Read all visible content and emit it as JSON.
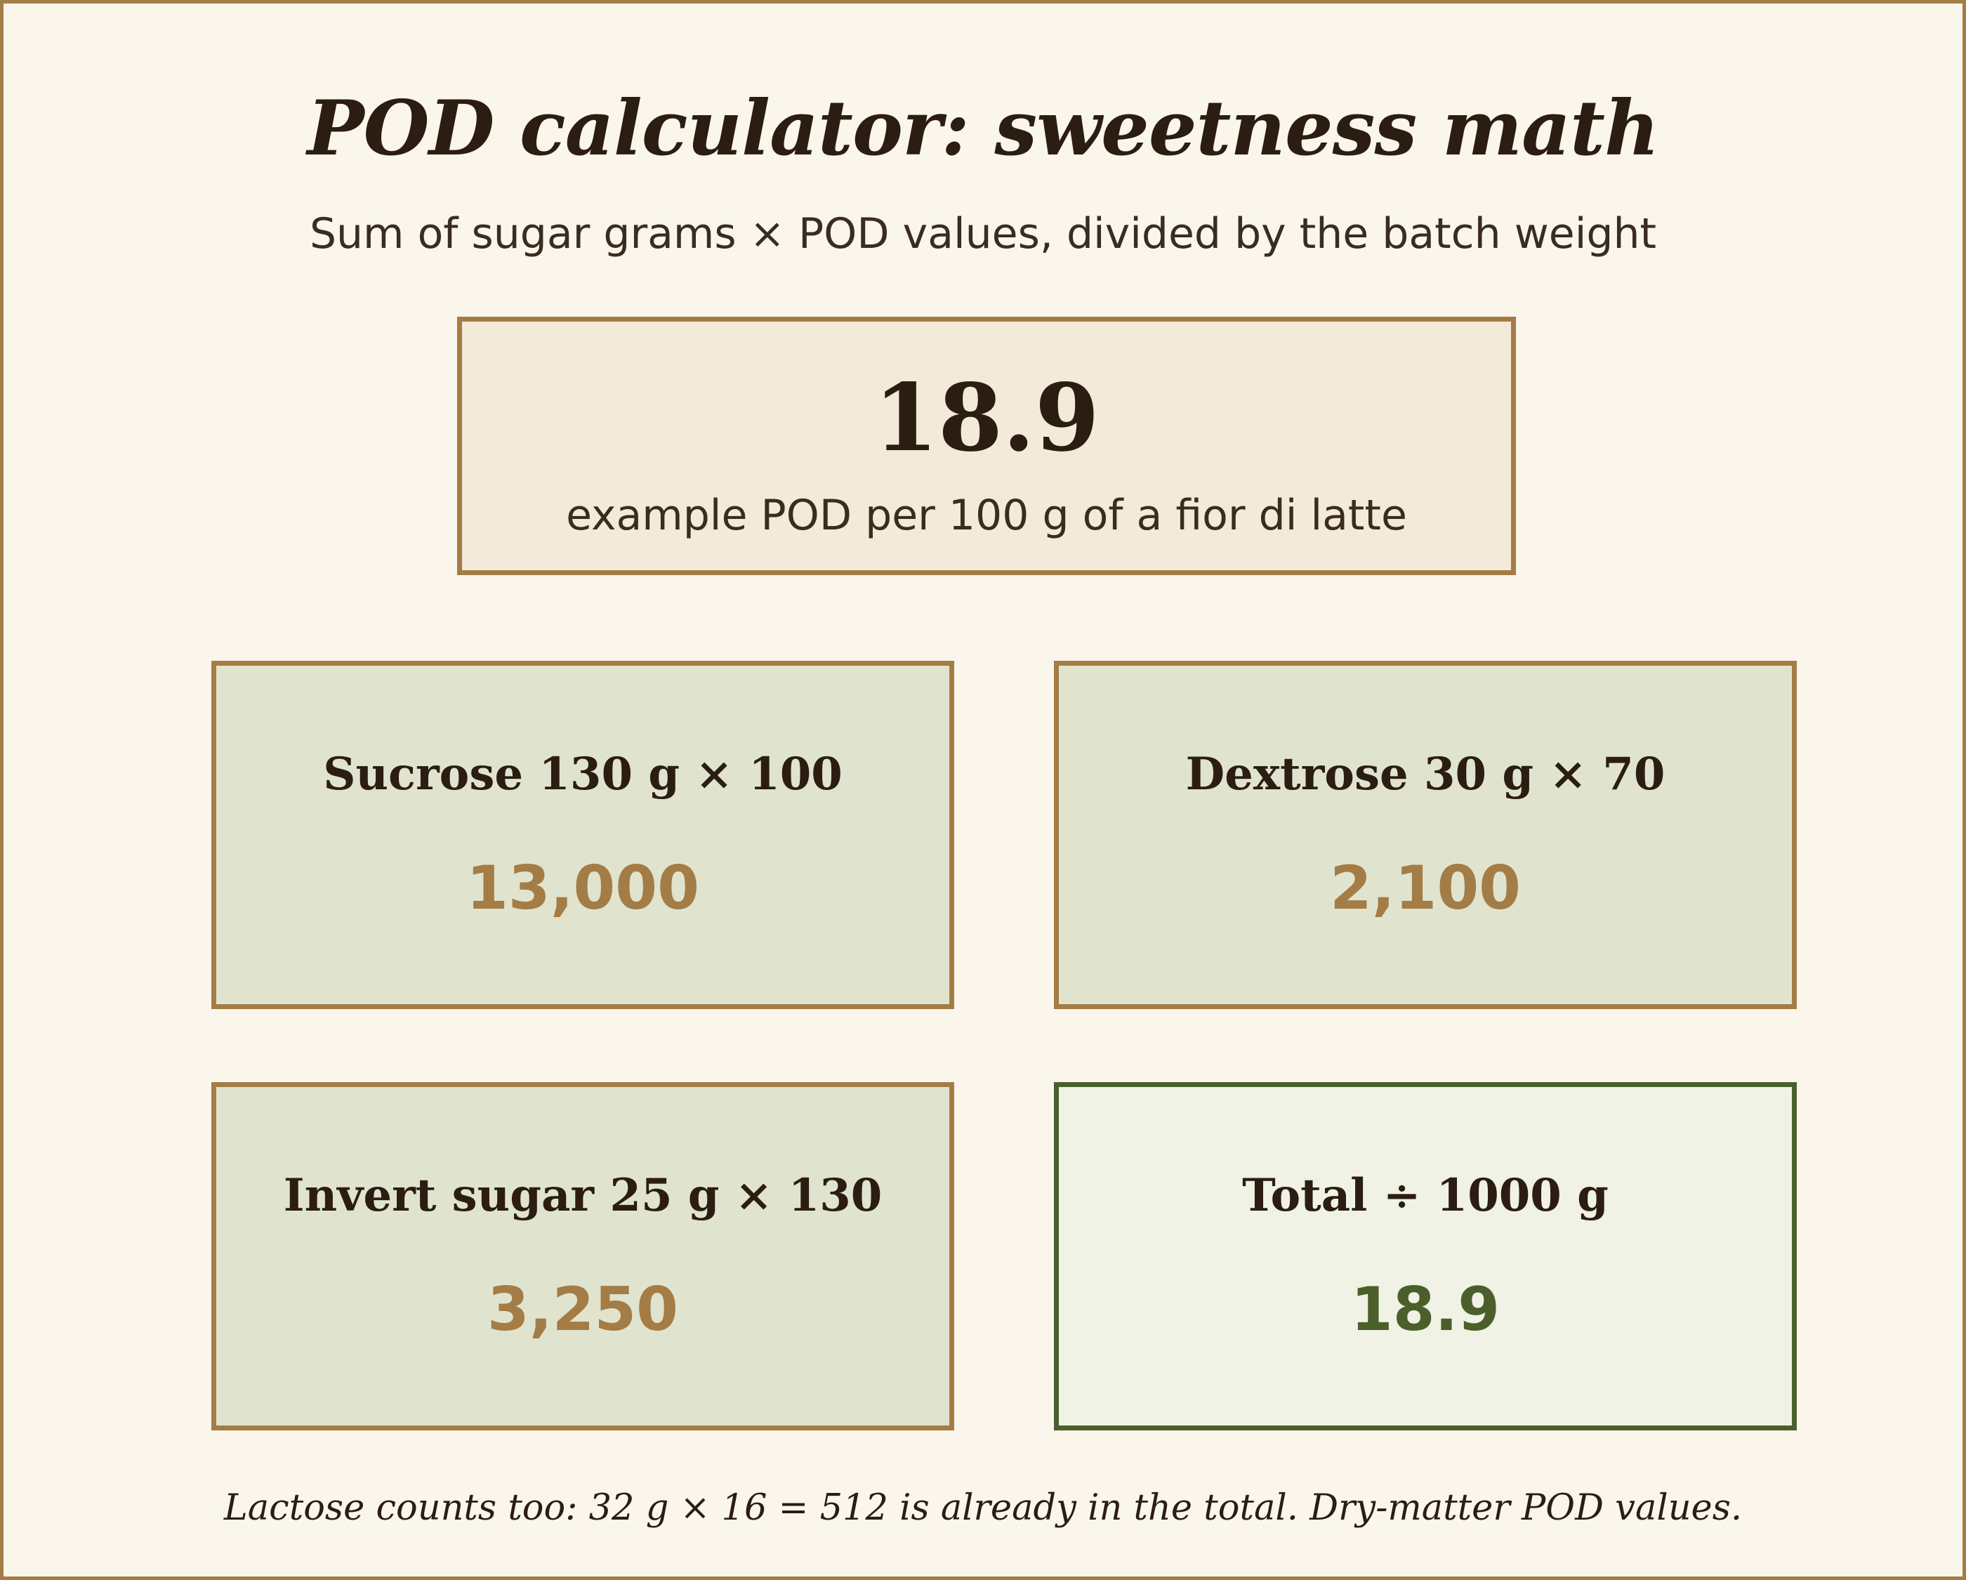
{
  "title": "POD calculator: sweetness math",
  "subtitle": "Sum of sugar grams × POD values, divided by the batch weight",
  "hero": {
    "value": "18.9",
    "caption": "example POD per 100 g of a fior di latte"
  },
  "cards": [
    {
      "label": "Sucrose 130 g × 100",
      "value": "13,000"
    },
    {
      "label": "Dextrose 30 g × 70",
      "value": "2,100"
    },
    {
      "label": "Invert sugar 25 g × 130",
      "value": "3,250"
    },
    {
      "label": "Total ÷ 1000 g",
      "value": "18.9"
    }
  ],
  "footnote": "Lactose counts too: 32 g × 16 = 512 is already in the total. Dry-matter POD values.",
  "colors": {
    "background": "#faf6ec",
    "border": "#a47c45",
    "hero_fill": "#f4ead9",
    "card_fill": "#e0e4cf",
    "total_border": "#4b5f2a",
    "total_fill": "#eff2e4",
    "value_accent": "#a47c45",
    "total_value": "#4b5f2a",
    "text": "#2b1d12"
  }
}
